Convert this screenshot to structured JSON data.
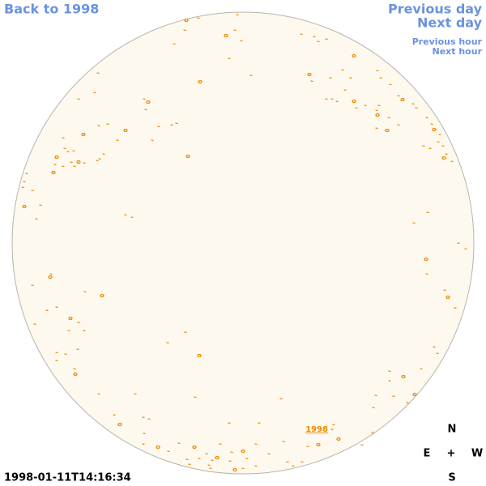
{
  "nav": {
    "back": "Back to 1998",
    "previous_day": "Previous day",
    "next_day": "Next day",
    "previous_hour": "Previous hour",
    "next_hour": "Next hour"
  },
  "timestamp": "1998-01-11T14:16:34",
  "compass": {
    "north": "N",
    "east": "E",
    "center": "+",
    "west": "W",
    "south": "S"
  },
  "disk_label": "1998"
}
